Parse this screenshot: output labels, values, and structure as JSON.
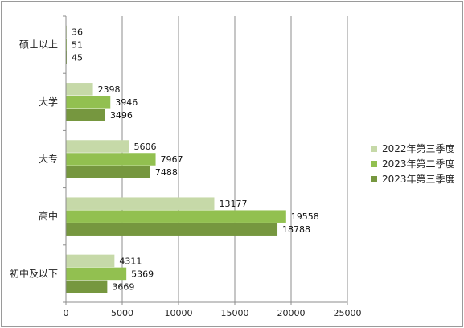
{
  "chart_data": {
    "type": "bar",
    "orientation": "horizontal",
    "categories": [
      "硕士以上",
      "大学",
      "大专",
      "高中",
      "初中及以下"
    ],
    "series": [
      {
        "name": "2022年第三季度",
        "values": [
          36,
          2398,
          5606,
          13177,
          4311
        ],
        "color": "#c6d9a8"
      },
      {
        "name": "2023年第二季度",
        "values": [
          51,
          3946,
          7967,
          19558,
          5369
        ],
        "color": "#92c050"
      },
      {
        "name": "2023年第三季度",
        "values": [
          45,
          3496,
          7488,
          18788,
          3669
        ],
        "color": "#76973f"
      }
    ],
    "x_ticks": [
      "0",
      "5000",
      "10000",
      "15000",
      "20000",
      "25000"
    ],
    "xlim": [
      0,
      25000
    ],
    "grid": true,
    "legend_position": "right",
    "title": "",
    "xlabel": "",
    "ylabel": ""
  }
}
